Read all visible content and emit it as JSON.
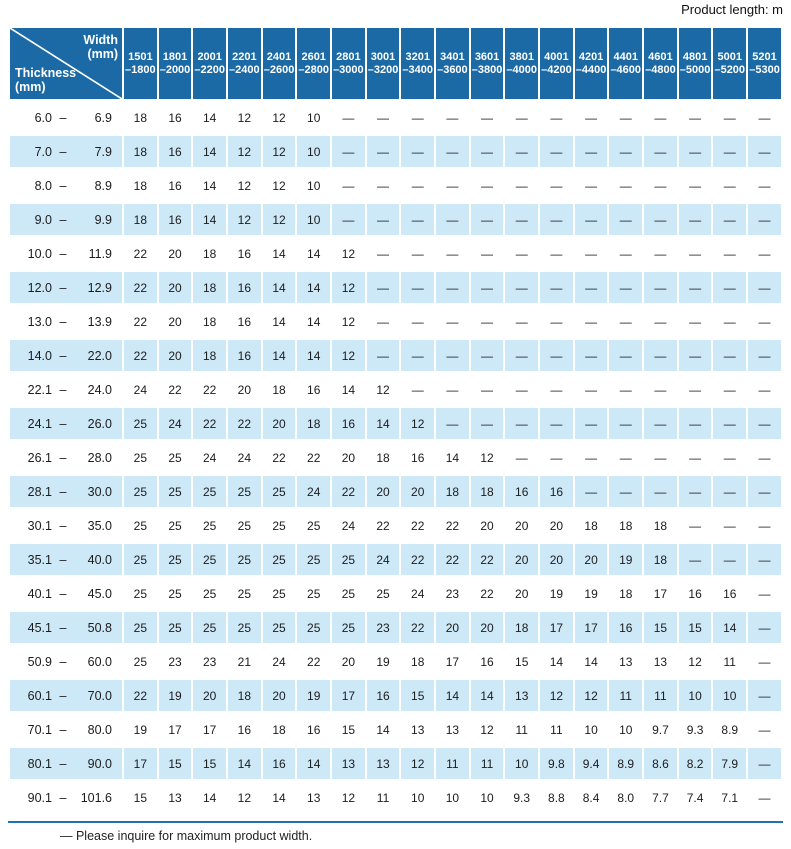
{
  "page": {
    "product_length_note": "Product length: m",
    "footer_note": "— Please inquire for maximum product width."
  },
  "colors": {
    "header_bg": "#1b6aa6",
    "alt_row_bg": "#cde8f7",
    "rule": "#2173ae"
  },
  "table": {
    "corner": {
      "width_label_line1": "Width",
      "width_label_line2": "(mm)",
      "thickness_label_line1": "Thickness",
      "thickness_label_line2": "(mm)"
    },
    "range_separator": "–",
    "columns": [
      {
        "line1": "1501",
        "line2": "–1800"
      },
      {
        "line1": "1801",
        "line2": "–2000"
      },
      {
        "line1": "2001",
        "line2": "–2200"
      },
      {
        "line1": "2201",
        "line2": "–2400"
      },
      {
        "line1": "2401",
        "line2": "–2600"
      },
      {
        "line1": "2601",
        "line2": "–2800"
      },
      {
        "line1": "2801",
        "line2": "–3000"
      },
      {
        "line1": "3001",
        "line2": "–3200"
      },
      {
        "line1": "3201",
        "line2": "–3400"
      },
      {
        "line1": "3401",
        "line2": "–3600"
      },
      {
        "line1": "3601",
        "line2": "–3800"
      },
      {
        "line1": "3801",
        "line2": "–4000"
      },
      {
        "line1": "4001",
        "line2": "–4200"
      },
      {
        "line1": "4201",
        "line2": "–4400"
      },
      {
        "line1": "4401",
        "line2": "–4600"
      },
      {
        "line1": "4601",
        "line2": "–4800"
      },
      {
        "line1": "4801",
        "line2": "–5000"
      },
      {
        "line1": "5001",
        "line2": "–5200"
      },
      {
        "line1": "5201",
        "line2": "–5300"
      }
    ],
    "rows": [
      {
        "lo": "6.0",
        "hi": "6.9",
        "values": [
          "18",
          "16",
          "14",
          "12",
          "12",
          "10",
          "—",
          "—",
          "—",
          "—",
          "—",
          "—",
          "—",
          "—",
          "—",
          "—",
          "—",
          "—",
          "—"
        ]
      },
      {
        "lo": "7.0",
        "hi": "7.9",
        "values": [
          "18",
          "16",
          "14",
          "12",
          "12",
          "10",
          "—",
          "—",
          "—",
          "—",
          "—",
          "—",
          "—",
          "—",
          "—",
          "—",
          "—",
          "—",
          "—"
        ]
      },
      {
        "lo": "8.0",
        "hi": "8.9",
        "values": [
          "18",
          "16",
          "14",
          "12",
          "12",
          "10",
          "—",
          "—",
          "—",
          "—",
          "—",
          "—",
          "—",
          "—",
          "—",
          "—",
          "—",
          "—",
          "—"
        ]
      },
      {
        "lo": "9.0",
        "hi": "9.9",
        "values": [
          "18",
          "16",
          "14",
          "12",
          "12",
          "10",
          "—",
          "—",
          "—",
          "—",
          "—",
          "—",
          "—",
          "—",
          "—",
          "—",
          "—",
          "—",
          "—"
        ]
      },
      {
        "lo": "10.0",
        "hi": "11.9",
        "values": [
          "22",
          "20",
          "18",
          "16",
          "14",
          "14",
          "12",
          "—",
          "—",
          "—",
          "—",
          "—",
          "—",
          "—",
          "—",
          "—",
          "—",
          "—",
          "—"
        ]
      },
      {
        "lo": "12.0",
        "hi": "12.9",
        "values": [
          "22",
          "20",
          "18",
          "16",
          "14",
          "14",
          "12",
          "—",
          "—",
          "—",
          "—",
          "—",
          "—",
          "—",
          "—",
          "—",
          "—",
          "—",
          "—"
        ]
      },
      {
        "lo": "13.0",
        "hi": "13.9",
        "values": [
          "22",
          "20",
          "18",
          "16",
          "14",
          "14",
          "12",
          "—",
          "—",
          "—",
          "—",
          "—",
          "—",
          "—",
          "—",
          "—",
          "—",
          "—",
          "—"
        ]
      },
      {
        "lo": "14.0",
        "hi": "22.0",
        "values": [
          "22",
          "20",
          "18",
          "16",
          "14",
          "14",
          "12",
          "—",
          "—",
          "—",
          "—",
          "—",
          "—",
          "—",
          "—",
          "—",
          "—",
          "—",
          "—"
        ]
      },
      {
        "lo": "22.1",
        "hi": "24.0",
        "values": [
          "24",
          "22",
          "22",
          "20",
          "18",
          "16",
          "14",
          "12",
          "—",
          "—",
          "—",
          "—",
          "—",
          "—",
          "—",
          "—",
          "—",
          "—",
          "—"
        ]
      },
      {
        "lo": "24.1",
        "hi": "26.0",
        "values": [
          "25",
          "24",
          "22",
          "22",
          "20",
          "18",
          "16",
          "14",
          "12",
          "—",
          "—",
          "—",
          "—",
          "—",
          "—",
          "—",
          "—",
          "—",
          "—"
        ]
      },
      {
        "lo": "26.1",
        "hi": "28.0",
        "values": [
          "25",
          "25",
          "24",
          "24",
          "22",
          "22",
          "20",
          "18",
          "16",
          "14",
          "12",
          "—",
          "—",
          "—",
          "—",
          "—",
          "—",
          "—",
          "—"
        ]
      },
      {
        "lo": "28.1",
        "hi": "30.0",
        "values": [
          "25",
          "25",
          "25",
          "25",
          "25",
          "24",
          "22",
          "20",
          "20",
          "18",
          "18",
          "16",
          "16",
          "—",
          "—",
          "—",
          "—",
          "—",
          "—"
        ]
      },
      {
        "lo": "30.1",
        "hi": "35.0",
        "values": [
          "25",
          "25",
          "25",
          "25",
          "25",
          "25",
          "24",
          "22",
          "22",
          "22",
          "20",
          "20",
          "20",
          "18",
          "18",
          "18",
          "—",
          "—",
          "—"
        ]
      },
      {
        "lo": "35.1",
        "hi": "40.0",
        "values": [
          "25",
          "25",
          "25",
          "25",
          "25",
          "25",
          "25",
          "24",
          "22",
          "22",
          "22",
          "20",
          "20",
          "20",
          "19",
          "18",
          "—",
          "—",
          "—"
        ]
      },
      {
        "lo": "40.1",
        "hi": "45.0",
        "values": [
          "25",
          "25",
          "25",
          "25",
          "25",
          "25",
          "25",
          "25",
          "24",
          "23",
          "22",
          "20",
          "19",
          "19",
          "18",
          "17",
          "16",
          "16",
          "—"
        ]
      },
      {
        "lo": "45.1",
        "hi": "50.8",
        "values": [
          "25",
          "25",
          "25",
          "25",
          "25",
          "25",
          "25",
          "23",
          "22",
          "20",
          "20",
          "18",
          "17",
          "17",
          "16",
          "15",
          "15",
          "14",
          "—"
        ]
      },
      {
        "lo": "50.9",
        "hi": "60.0",
        "values": [
          "25",
          "23",
          "23",
          "21",
          "24",
          "22",
          "20",
          "19",
          "18",
          "17",
          "16",
          "15",
          "14",
          "14",
          "13",
          "13",
          "12",
          "11",
          "—"
        ]
      },
      {
        "lo": "60.1",
        "hi": "70.0",
        "values": [
          "22",
          "19",
          "20",
          "18",
          "20",
          "19",
          "17",
          "16",
          "15",
          "14",
          "14",
          "13",
          "12",
          "12",
          "11",
          "11",
          "10",
          "10",
          "—"
        ]
      },
      {
        "lo": "70.1",
        "hi": "80.0",
        "values": [
          "19",
          "17",
          "17",
          "16",
          "18",
          "16",
          "15",
          "14",
          "13",
          "13",
          "12",
          "11",
          "11",
          "10",
          "10",
          "9.7",
          "9.3",
          "8.9",
          "—"
        ]
      },
      {
        "lo": "80.1",
        "hi": "90.0",
        "values": [
          "17",
          "15",
          "15",
          "14",
          "16",
          "14",
          "13",
          "13",
          "12",
          "11",
          "11",
          "10",
          "9.8",
          "9.4",
          "8.9",
          "8.6",
          "8.2",
          "7.9",
          "—"
        ]
      },
      {
        "lo": "90.1",
        "hi": "101.6",
        "values": [
          "15",
          "13",
          "14",
          "12",
          "14",
          "13",
          "12",
          "11",
          "10",
          "10",
          "10",
          "9.3",
          "8.8",
          "8.4",
          "8.0",
          "7.7",
          "7.4",
          "7.1",
          "—"
        ]
      }
    ]
  }
}
